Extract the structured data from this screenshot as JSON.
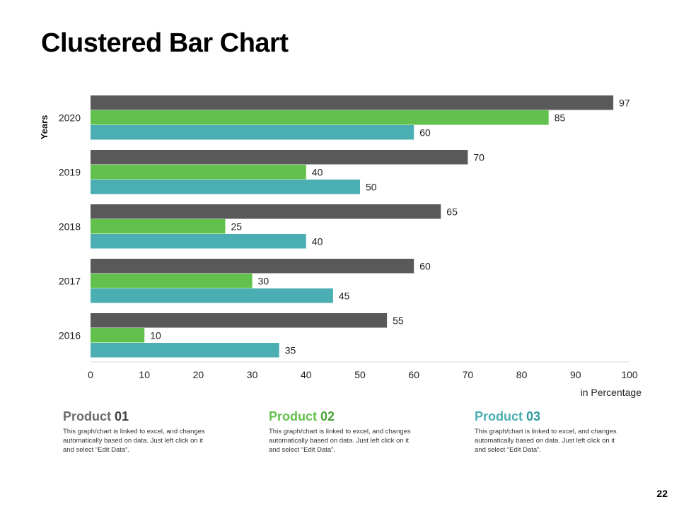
{
  "page": {
    "title": "Clustered Bar Chart",
    "page_number": "22"
  },
  "chart_data": {
    "type": "bar",
    "orientation": "horizontal",
    "categories": [
      "2020",
      "2019",
      "2018",
      "2017",
      "2016"
    ],
    "series": [
      {
        "name": "Product 01",
        "color": "#595959",
        "values": [
          97,
          70,
          65,
          60,
          55
        ]
      },
      {
        "name": "Product 02",
        "color": "#62c04c",
        "values": [
          85,
          40,
          25,
          30,
          10
        ]
      },
      {
        "name": "Product 03",
        "color": "#4aaeb2",
        "values": [
          60,
          50,
          40,
          45,
          35
        ]
      }
    ],
    "title": "",
    "xlabel": "in Percentage",
    "ylabel": "Years",
    "xlim": [
      0,
      100
    ],
    "xticks": [
      "0",
      "10",
      "20",
      "30",
      "40",
      "50",
      "60",
      "70",
      "80",
      "90",
      "100"
    ],
    "grid": false
  },
  "legend": [
    {
      "label": "Product",
      "number": "01",
      "color": "#595959",
      "text_color": "#6b6b6b",
      "num_color": "#3f3f3f",
      "description": "This graph/chart is linked to excel, and changes automatically based on data. Just left click on it and select “Edit Data”."
    },
    {
      "label": "Product",
      "number": "02",
      "color": "#62c04c",
      "text_color": "#62c04c",
      "num_color": "#4aa338",
      "description": "This graph/chart is linked to excel, and changes automatically based on data. Just left click on it and select “Edit Data”."
    },
    {
      "label": "Product",
      "number": "03",
      "color": "#4aaeb2",
      "text_color": "#4aaeb2",
      "num_color": "#2f9aa0",
      "description": "This graph/chart is linked to excel, and changes automatically based on data. Just left click on it and select “Edit Data”."
    }
  ]
}
